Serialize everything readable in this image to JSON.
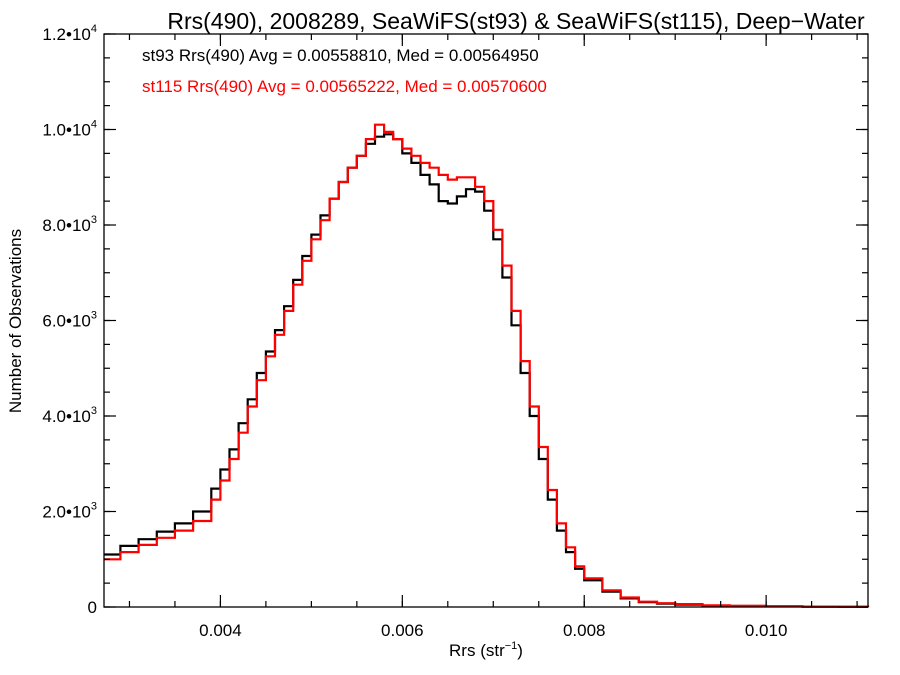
{
  "chart_data": {
    "type": "line",
    "title": "Rrs(490), 2008289, SeaWiFS(st93) & SeaWiFS(st115), Deep−Water",
    "xlabel": "Rrs (str",
    "xlabel_sup": "−1",
    "xlabel_close": ")",
    "ylabel": "Number of Observations",
    "xlim": [
      0.00272,
      0.01112
    ],
    "ylim": [
      0,
      12000
    ],
    "grid": false,
    "x_ticks": [
      {
        "value": 0.004,
        "label": "0.004"
      },
      {
        "value": 0.006,
        "label": "0.006"
      },
      {
        "value": 0.008,
        "label": "0.008"
      },
      {
        "value": 0.01,
        "label": "0.010"
      }
    ],
    "y_ticks": [
      {
        "value": 0,
        "mantissa": "0",
        "exp": ""
      },
      {
        "value": 2000,
        "mantissa": "2.0•10",
        "exp": "3"
      },
      {
        "value": 4000,
        "mantissa": "4.0•10",
        "exp": "3"
      },
      {
        "value": 6000,
        "mantissa": "6.0•10",
        "exp": "3"
      },
      {
        "value": 8000,
        "mantissa": "8.0•10",
        "exp": "3"
      },
      {
        "value": 10000,
        "mantissa": "1.0•10",
        "exp": "4"
      },
      {
        "value": 12000,
        "mantissa": "1.2•10",
        "exp": "4"
      }
    ],
    "annotations": [
      {
        "text": "st93 Rrs(490) Avg = 0.00558810, Med = 0.00564950",
        "color": "#000000"
      },
      {
        "text": "st115 Rrs(490) Avg = 0.00565222, Med = 0.00570600",
        "color": "#ff0000"
      }
    ],
    "series": [
      {
        "color": "#000000",
        "x": [
          0.00272,
          0.0029,
          0.0031,
          0.0033,
          0.0035,
          0.0037,
          0.0039,
          0.004,
          0.0041,
          0.0042,
          0.0043,
          0.0044,
          0.0045,
          0.0046,
          0.0047,
          0.0048,
          0.0049,
          0.005,
          0.0051,
          0.0052,
          0.0053,
          0.0054,
          0.0055,
          0.0056,
          0.0057,
          0.0058,
          0.0059,
          0.006,
          0.0061,
          0.0062,
          0.0063,
          0.0064,
          0.0065,
          0.0066,
          0.0067,
          0.0068,
          0.0069,
          0.007,
          0.0071,
          0.0072,
          0.0073,
          0.0074,
          0.0075,
          0.0076,
          0.0077,
          0.0078,
          0.0079,
          0.008,
          0.0082,
          0.0084,
          0.0086,
          0.0088,
          0.009,
          0.0093,
          0.0096,
          0.01,
          0.0104,
          0.0108,
          0.01112
        ],
        "y": [
          1100,
          1280,
          1420,
          1580,
          1750,
          2000,
          2480,
          2880,
          3300,
          3850,
          4350,
          4900,
          5350,
          5800,
          6300,
          6850,
          7350,
          7800,
          8200,
          8550,
          8900,
          9200,
          9450,
          9700,
          9850,
          9900,
          9800,
          9500,
          9300,
          9050,
          8850,
          8500,
          8450,
          8600,
          8750,
          8700,
          8300,
          7700,
          6900,
          5900,
          4900,
          4000,
          3100,
          2250,
          1600,
          1150,
          800,
          560,
          320,
          180,
          100,
          70,
          50,
          30,
          20,
          12,
          8,
          5,
          3
        ]
      },
      {
        "color": "#ff0000",
        "x": [
          0.00272,
          0.0029,
          0.0031,
          0.0033,
          0.0035,
          0.0037,
          0.0039,
          0.004,
          0.0041,
          0.0042,
          0.0043,
          0.0044,
          0.0045,
          0.0046,
          0.0047,
          0.0048,
          0.0049,
          0.005,
          0.0051,
          0.0052,
          0.0053,
          0.0054,
          0.0055,
          0.0056,
          0.0057,
          0.0058,
          0.0059,
          0.006,
          0.0061,
          0.0062,
          0.0063,
          0.0064,
          0.0065,
          0.0066,
          0.0067,
          0.0068,
          0.0069,
          0.007,
          0.0071,
          0.0072,
          0.0073,
          0.0074,
          0.0075,
          0.0076,
          0.0077,
          0.0078,
          0.0079,
          0.008,
          0.0082,
          0.0084,
          0.0086,
          0.0088,
          0.009,
          0.0093,
          0.0096,
          0.01,
          0.0104,
          0.0108,
          0.01112
        ],
        "y": [
          1000,
          1150,
          1300,
          1450,
          1600,
          1800,
          2250,
          2650,
          3100,
          3650,
          4200,
          4750,
          5250,
          5700,
          6200,
          6750,
          7250,
          7700,
          8100,
          8550,
          8900,
          9200,
          9450,
          9800,
          10100,
          9950,
          9800,
          9600,
          9450,
          9300,
          9200,
          9050,
          8950,
          9000,
          9000,
          8800,
          8500,
          7900,
          7150,
          6200,
          5150,
          4200,
          3350,
          2450,
          1750,
          1250,
          850,
          600,
          350,
          200,
          110,
          80,
          60,
          35,
          22,
          14,
          9,
          6,
          3
        ]
      }
    ]
  }
}
